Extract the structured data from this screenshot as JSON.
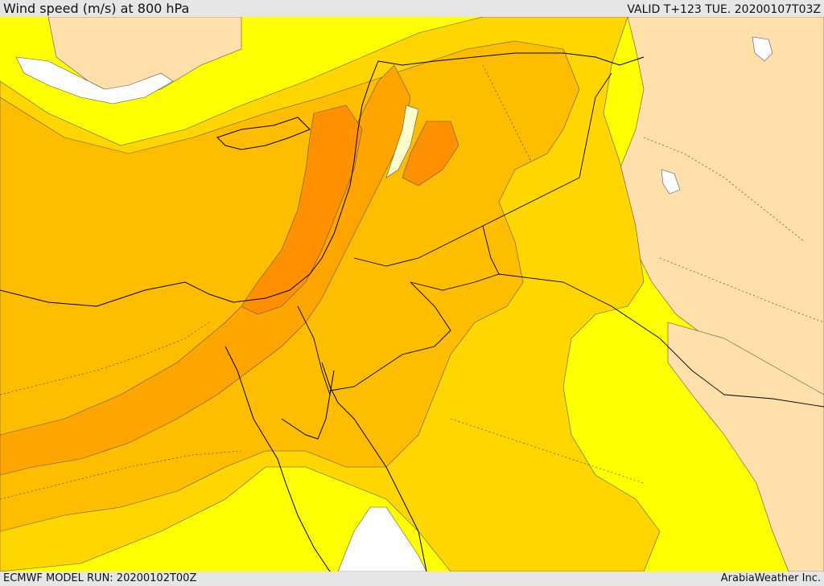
{
  "header": {
    "title": "Wind speed (m/s) at 800 hPa",
    "valid": "VALID T+123 TUE. 20200107T03Z"
  },
  "footer": {
    "model_run": "ECMWF MODEL RUN: 20200102T00Z",
    "credit": "ArabiaWeather Inc."
  },
  "map": {
    "variable": "wind speed",
    "units": "m/s",
    "level_hpa": 800,
    "region": "Eastern Mediterranean / Levant",
    "colors": {
      "calm": "#ffffff",
      "light": "#ffdfaa",
      "low": "#ffff00",
      "mid": "#ffd600",
      "mid_high": "#ffbd00",
      "high": "#ffa500",
      "highest": "#ff9000",
      "border": "#000000"
    }
  }
}
